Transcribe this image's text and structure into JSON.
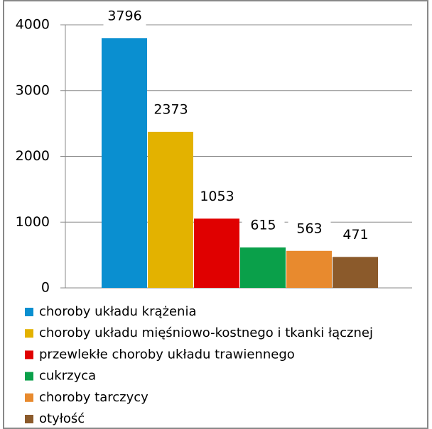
{
  "chart_data": {
    "type": "bar",
    "categories": [
      null
    ],
    "series": [
      {
        "name": "choroby układu krążenia",
        "color": "#0a8fd0",
        "values": [
          3796
        ]
      },
      {
        "name": "choroby układu mięśniowo-kostnego i tkanki łącznej",
        "color": "#e3b200",
        "values": [
          2373
        ]
      },
      {
        "name": "przewlekłe choroby układu trawiennego",
        "color": "#e00000",
        "values": [
          1053
        ]
      },
      {
        "name": "cukrzyca",
        "color": "#0aa04a",
        "values": [
          615
        ]
      },
      {
        "name": "choroby tarczycy",
        "color": "#e88a2e",
        "values": [
          563
        ]
      },
      {
        "name": "otyłość",
        "color": "#8b5a2b",
        "values": [
          471
        ]
      }
    ],
    "ylim": [
      0,
      4000
    ],
    "yticks": [
      0,
      1000,
      2000,
      3000,
      4000
    ],
    "grid": true,
    "legend": "bottom"
  }
}
